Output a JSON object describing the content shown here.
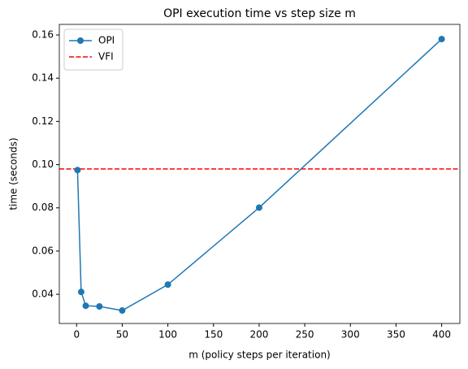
{
  "chart_data": {
    "type": "line",
    "title": "OPI execution time vs step size m",
    "x_label": "m (policy steps per iteration)",
    "y_label": "time (seconds)",
    "x": [
      1,
      5,
      10,
      25,
      50,
      100,
      200,
      400
    ],
    "series": [
      {
        "name": "OPI",
        "color": "#1f77b4",
        "values": [
          0.0975,
          0.0411,
          0.0347,
          0.0344,
          0.0325,
          0.0445,
          0.0801,
          0.1581
        ]
      }
    ],
    "reference_lines": [
      {
        "name": "VFI",
        "color": "#ff0000",
        "value": 0.098
      }
    ],
    "xlim": [
      -18.95,
      419.95
    ],
    "xticks": [
      0,
      50,
      100,
      150,
      200,
      250,
      300,
      350,
      400
    ],
    "ylim": [
      0.0265,
      0.1649
    ],
    "yticks": [
      0.04,
      0.06,
      0.08,
      {
        "value": 0.1,
        "label": "0.10"
      },
      0.12,
      0.14,
      0.16
    ],
    "legend": "upper left"
  }
}
